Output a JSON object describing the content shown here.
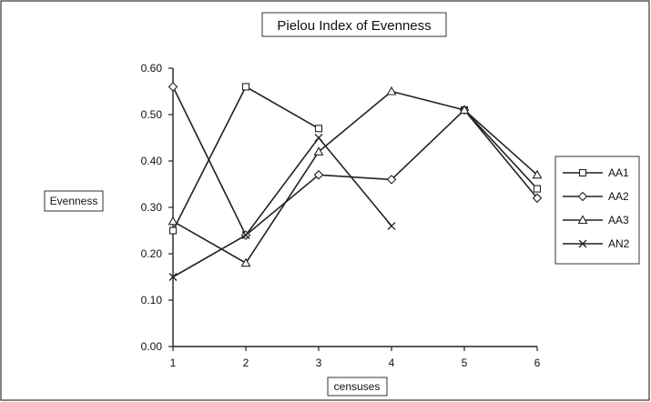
{
  "chart_data": {
    "type": "line",
    "title": "Pielou Index of Evenness",
    "xlabel": "censuses",
    "ylabel": "Evenness",
    "categories": [
      "1",
      "2",
      "3",
      "4",
      "5",
      "6"
    ],
    "ylim": [
      0,
      0.6
    ],
    "yticks": [
      "0.00",
      "0.10",
      "0.20",
      "0.30",
      "0.40",
      "0.50",
      "0.60"
    ],
    "grid": false,
    "legend_position": "right",
    "series": [
      {
        "name": "AA1",
        "marker": "square",
        "values": [
          0.25,
          0.56,
          0.47,
          null,
          0.51,
          0.34
        ]
      },
      {
        "name": "AA2",
        "marker": "diamond",
        "values": [
          0.56,
          0.24,
          0.37,
          0.36,
          0.51,
          0.32
        ]
      },
      {
        "name": "AA3",
        "marker": "triangle",
        "values": [
          0.27,
          0.18,
          0.42,
          0.55,
          0.51,
          0.37
        ]
      },
      {
        "name": "AN2",
        "marker": "x",
        "values": [
          0.15,
          0.24,
          0.45,
          0.26,
          null,
          null
        ]
      }
    ],
    "line_color": "#222222"
  }
}
